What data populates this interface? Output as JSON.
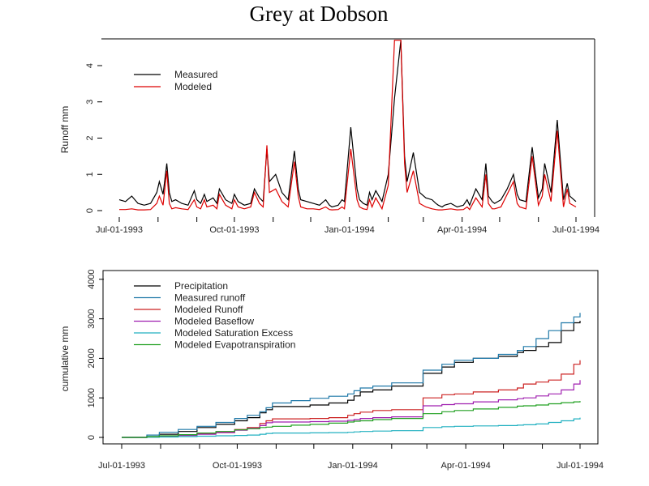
{
  "title": "Grey at Dobson",
  "chart_data": [
    {
      "type": "line",
      "title": "",
      "xlabel": "",
      "ylabel": "Runoff mm",
      "ylim": [
        0,
        4.7
      ],
      "yticks": [
        "0",
        "1",
        "2",
        "3",
        "4"
      ],
      "xrange": [
        "Jul-01-1993",
        "Jul-01-1994"
      ],
      "xtick_labels": [
        "Jul-01-1993",
        "Oct-01-1993",
        "Jan-01-1994",
        "Apr-01-1994",
        "Jul-01-1994"
      ],
      "xticks_monthly": true,
      "legend_position": "top-left",
      "legend": [
        {
          "name": "Measured",
          "color": "#000000"
        },
        {
          "name": "Modeled",
          "color": "#dd0000"
        }
      ],
      "series": [
        {
          "name": "Measured",
          "color": "#000000",
          "day": [
            0,
            5,
            10,
            15,
            20,
            25,
            30,
            32,
            35,
            38,
            40,
            42,
            45,
            50,
            55,
            60,
            62,
            65,
            68,
            70,
            75,
            78,
            80,
            85,
            90,
            92,
            95,
            100,
            105,
            108,
            112,
            115,
            118,
            120,
            125,
            130,
            135,
            140,
            143,
            145,
            150,
            155,
            160,
            165,
            168,
            170,
            175,
            178,
            180,
            185,
            190,
            192,
            195,
            198,
            200,
            202,
            205,
            210,
            215,
            220,
            225,
            228,
            230,
            235,
            240,
            245,
            250,
            253,
            255,
            258,
            260,
            265,
            270,
            275,
            278,
            280,
            285,
            290,
            293,
            295,
            298,
            300,
            305,
            310,
            315,
            318,
            320,
            325,
            330,
            335,
            338,
            340,
            345,
            350,
            355,
            358,
            360,
            365
          ],
          "values": [
            0.3,
            0.25,
            0.4,
            0.2,
            0.15,
            0.2,
            0.5,
            0.8,
            0.45,
            1.3,
            0.5,
            0.25,
            0.3,
            0.2,
            0.15,
            0.55,
            0.3,
            0.2,
            0.45,
            0.25,
            0.35,
            0.2,
            0.6,
            0.3,
            0.2,
            0.45,
            0.25,
            0.15,
            0.2,
            0.6,
            0.35,
            0.25,
            1.7,
            0.8,
            1.0,
            0.5,
            0.3,
            1.65,
            0.6,
            0.3,
            0.25,
            0.2,
            0.15,
            0.3,
            0.15,
            0.1,
            0.15,
            0.3,
            0.25,
            2.3,
            0.6,
            0.3,
            0.2,
            0.15,
            0.5,
            0.3,
            0.55,
            0.25,
            1.0,
            3.1,
            4.7,
            1.5,
            0.8,
            1.6,
            0.5,
            0.35,
            0.3,
            0.2,
            0.15,
            0.1,
            0.15,
            0.2,
            0.1,
            0.15,
            0.3,
            0.15,
            0.6,
            0.3,
            1.3,
            0.4,
            0.25,
            0.2,
            0.3,
            0.6,
            1.0,
            0.45,
            0.3,
            0.25,
            1.75,
            0.35,
            0.6,
            1.3,
            0.5,
            2.5,
            0.3,
            0.75,
            0.4,
            0.25
          ]
        },
        {
          "name": "Modeled",
          "color": "#dd0000",
          "day": [
            0,
            5,
            10,
            15,
            20,
            25,
            30,
            32,
            35,
            38,
            40,
            42,
            45,
            50,
            55,
            60,
            62,
            65,
            68,
            70,
            75,
            78,
            80,
            85,
            90,
            92,
            95,
            100,
            105,
            108,
            112,
            115,
            118,
            120,
            125,
            130,
            135,
            140,
            143,
            145,
            150,
            155,
            160,
            165,
            168,
            170,
            175,
            178,
            180,
            185,
            190,
            192,
            195,
            198,
            200,
            202,
            205,
            210,
            215,
            220,
            225,
            228,
            230,
            235,
            240,
            245,
            250,
            253,
            255,
            258,
            260,
            265,
            270,
            275,
            278,
            280,
            285,
            290,
            293,
            295,
            298,
            300,
            305,
            310,
            315,
            318,
            320,
            325,
            330,
            335,
            338,
            340,
            345,
            350,
            355,
            358,
            360,
            365
          ],
          "values": [
            0.03,
            0.03,
            0.05,
            0.02,
            0.02,
            0.03,
            0.2,
            0.4,
            0.15,
            1.1,
            0.2,
            0.05,
            0.08,
            0.05,
            0.03,
            0.3,
            0.1,
            0.05,
            0.3,
            0.1,
            0.15,
            0.05,
            0.45,
            0.15,
            0.05,
            0.3,
            0.1,
            0.05,
            0.1,
            0.5,
            0.2,
            0.1,
            1.8,
            0.5,
            0.6,
            0.25,
            0.1,
            1.35,
            0.4,
            0.1,
            0.05,
            0.05,
            0.03,
            0.1,
            0.03,
            0.02,
            0.03,
            0.1,
            0.05,
            1.7,
            0.3,
            0.1,
            0.05,
            0.03,
            0.3,
            0.1,
            0.35,
            0.05,
            0.7,
            4.7,
            4.7,
            1.3,
            0.5,
            1.1,
            0.2,
            0.1,
            0.05,
            0.03,
            0.02,
            0.02,
            0.03,
            0.05,
            0.02,
            0.03,
            0.1,
            0.03,
            0.35,
            0.1,
            1.0,
            0.2,
            0.05,
            0.05,
            0.1,
            0.45,
            0.8,
            0.2,
            0.1,
            0.05,
            1.5,
            0.15,
            0.4,
            1.0,
            0.25,
            2.2,
            0.1,
            0.6,
            0.2,
            0.1
          ]
        }
      ]
    },
    {
      "type": "line",
      "title": "",
      "xlabel": "",
      "ylabel": "cumulative mm",
      "ylim": [
        0,
        4000
      ],
      "yticks": [
        "0",
        "1000",
        "2000",
        "3000",
        "4000"
      ],
      "xrange": [
        "Jul-01-1993",
        "Jul-01-1994"
      ],
      "xtick_labels": [
        "Jul-01-1993",
        "Oct-01-1993",
        "Jan-01-1994",
        "Apr-01-1994",
        "Jul-01-1994"
      ],
      "xticks_monthly": true,
      "legend_position": "top-left",
      "legend": [
        {
          "name": "Precipitation",
          "color": "#000000"
        },
        {
          "name": "Measured runoff",
          "color": "#1f78a8"
        },
        {
          "name": "Modeled Runoff",
          "color": "#cc2222"
        },
        {
          "name": "Modeled Baseflow",
          "color": "#a020b0"
        },
        {
          "name": "Modeled Saturation Excess",
          "color": "#20b0c0"
        },
        {
          "name": "Modeled Evapotranspiration",
          "color": "#22a022"
        }
      ],
      "series": [
        {
          "name": "Precipitation",
          "color": "#000000",
          "day": [
            0,
            20,
            30,
            45,
            60,
            75,
            90,
            100,
            110,
            115,
            120,
            135,
            150,
            165,
            180,
            185,
            190,
            200,
            215,
            240,
            255,
            265,
            280,
            300,
            315,
            320,
            330,
            340,
            350,
            360,
            365
          ],
          "values": [
            0,
            20,
            80,
            150,
            250,
            330,
            420,
            500,
            620,
            700,
            780,
            780,
            820,
            870,
            940,
            1050,
            1150,
            1200,
            1300,
            1620,
            1780,
            1900,
            2000,
            2050,
            2150,
            2200,
            2300,
            2400,
            2700,
            2900,
            2950
          ]
        },
        {
          "name": "Measured runoff",
          "color": "#1f78a8",
          "day": [
            0,
            20,
            30,
            45,
            60,
            75,
            90,
            100,
            110,
            115,
            120,
            135,
            150,
            165,
            180,
            185,
            190,
            200,
            215,
            240,
            255,
            265,
            280,
            300,
            315,
            320,
            330,
            340,
            350,
            360,
            365
          ],
          "values": [
            0,
            60,
            130,
            200,
            280,
            380,
            480,
            560,
            650,
            750,
            870,
            930,
            990,
            1040,
            1100,
            1180,
            1250,
            1300,
            1380,
            1700,
            1850,
            1950,
            2000,
            2100,
            2200,
            2300,
            2500,
            2700,
            2900,
            3050,
            3150
          ]
        },
        {
          "name": "Modeled Runoff",
          "color": "#cc2222",
          "day": [
            0,
            20,
            30,
            45,
            60,
            75,
            90,
            100,
            110,
            115,
            120,
            135,
            150,
            165,
            180,
            185,
            190,
            200,
            215,
            240,
            255,
            265,
            280,
            300,
            315,
            320,
            330,
            340,
            350,
            360,
            365
          ],
          "values": [
            0,
            10,
            30,
            60,
            100,
            140,
            200,
            250,
            350,
            420,
            470,
            470,
            480,
            500,
            560,
            600,
            640,
            680,
            700,
            1000,
            1080,
            1100,
            1150,
            1200,
            1250,
            1350,
            1400,
            1450,
            1600,
            1850,
            1950
          ]
        },
        {
          "name": "Modeled Baseflow",
          "color": "#a020b0",
          "day": [
            0,
            20,
            30,
            45,
            60,
            75,
            90,
            100,
            110,
            115,
            120,
            135,
            150,
            165,
            180,
            185,
            190,
            200,
            215,
            240,
            255,
            265,
            280,
            300,
            315,
            320,
            330,
            340,
            350,
            360,
            365
          ],
          "values": [
            0,
            10,
            25,
            50,
            80,
            120,
            180,
            230,
            300,
            370,
            390,
            390,
            400,
            410,
            430,
            450,
            480,
            500,
            520,
            800,
            830,
            850,
            900,
            950,
            980,
            1000,
            1050,
            1100,
            1200,
            1350,
            1450
          ]
        },
        {
          "name": "Modeled Saturation Excess",
          "color": "#20b0c0",
          "day": [
            0,
            20,
            30,
            45,
            60,
            75,
            90,
            100,
            110,
            115,
            120,
            135,
            150,
            165,
            180,
            185,
            190,
            200,
            215,
            240,
            255,
            265,
            280,
            300,
            315,
            320,
            330,
            340,
            350,
            360,
            365
          ],
          "values": [
            0,
            5,
            10,
            20,
            30,
            40,
            50,
            60,
            80,
            100,
            110,
            110,
            115,
            120,
            130,
            140,
            150,
            160,
            170,
            250,
            270,
            280,
            290,
            300,
            310,
            320,
            340,
            380,
            420,
            470,
            500
          ]
        },
        {
          "name": "Modeled Evapotranspiration",
          "color": "#22a022",
          "day": [
            0,
            20,
            30,
            45,
            60,
            75,
            90,
            100,
            110,
            115,
            120,
            135,
            150,
            165,
            180,
            185,
            190,
            200,
            215,
            240,
            255,
            265,
            280,
            300,
            315,
            320,
            330,
            340,
            350,
            360,
            365
          ],
          "values": [
            0,
            20,
            40,
            70,
            110,
            150,
            190,
            220,
            250,
            260,
            280,
            310,
            330,
            360,
            390,
            410,
            420,
            450,
            480,
            600,
            650,
            680,
            720,
            760,
            790,
            800,
            820,
            850,
            880,
            900,
            920
          ]
        }
      ]
    }
  ]
}
